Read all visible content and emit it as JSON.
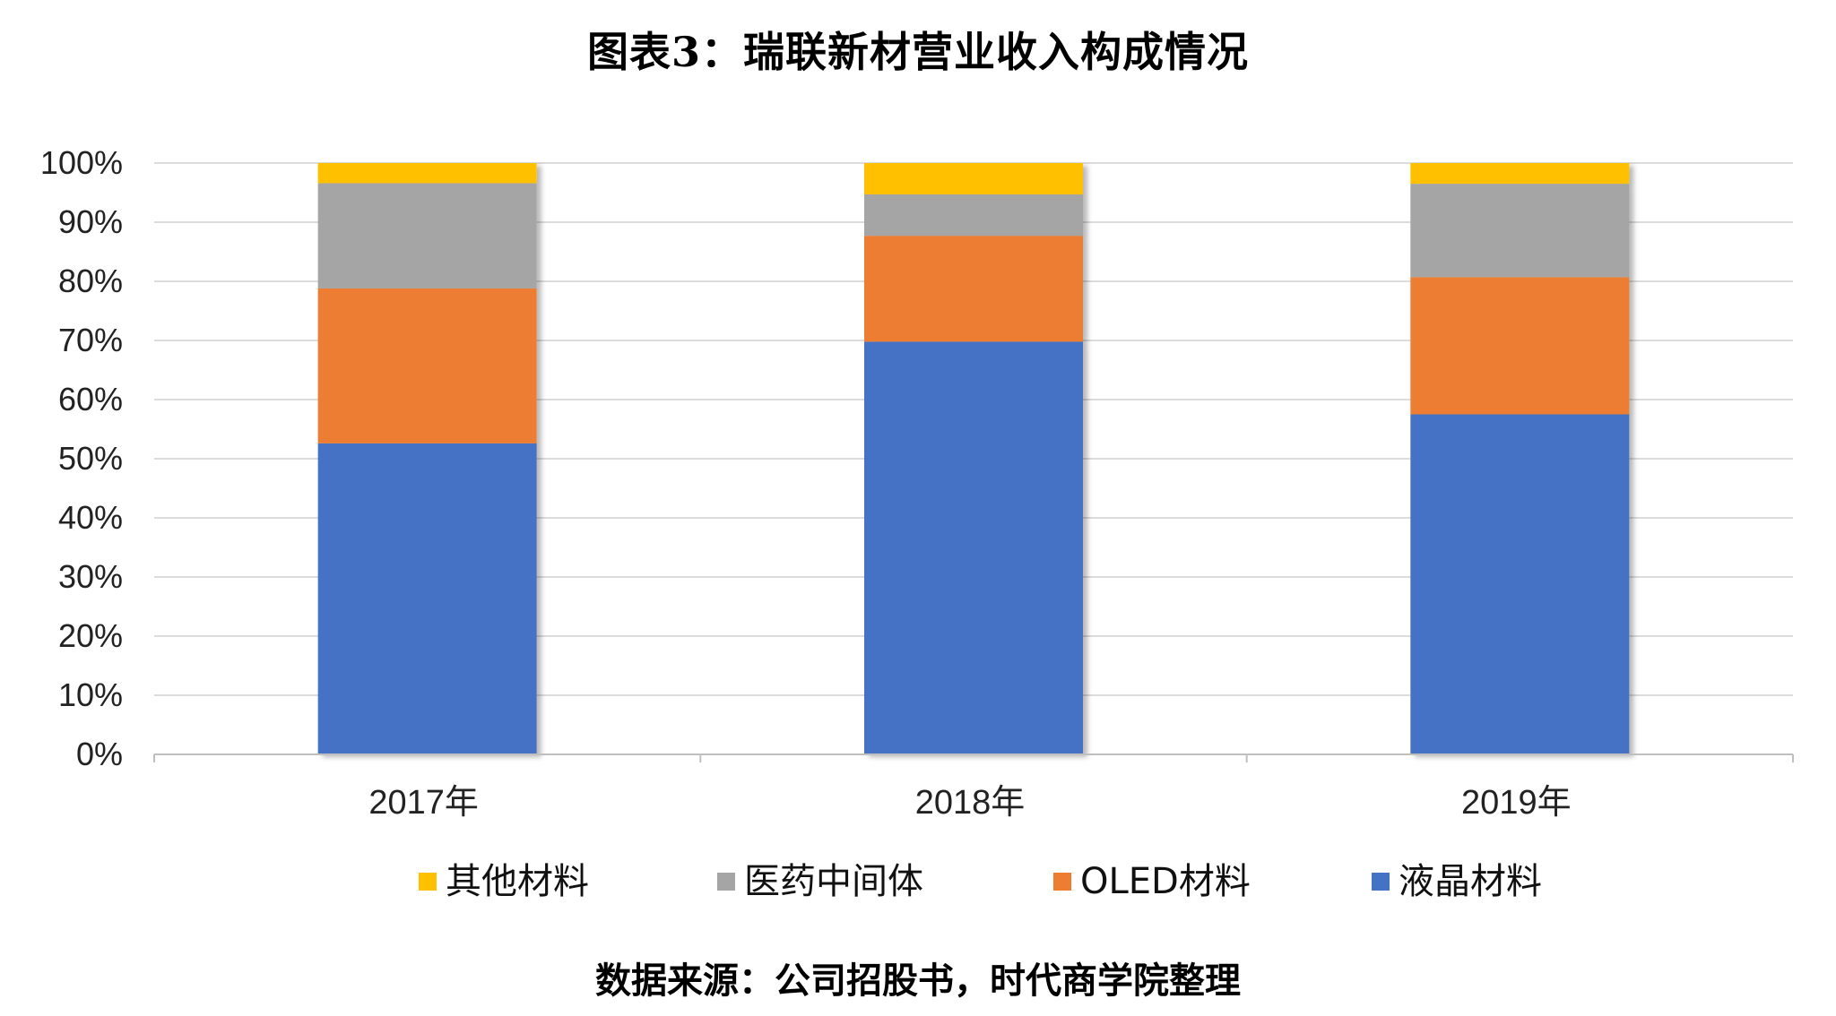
{
  "title": "图表3：瑞联新材营业收入构成情况",
  "source": "数据来源：公司招股书，时代商学院整理",
  "chart_data": {
    "type": "bar",
    "stacked": true,
    "categories": [
      "2017年",
      "2018年",
      "2019年"
    ],
    "series": [
      {
        "name": "液晶材料",
        "color": "#4472C4",
        "values": [
          52.6,
          69.8,
          57.5
        ]
      },
      {
        "name": "OLED材料",
        "color": "#ED7D31",
        "values": [
          26.2,
          17.9,
          23.2
        ]
      },
      {
        "name": "医药中间体",
        "color": "#A5A5A5",
        "values": [
          17.8,
          7.0,
          15.8
        ]
      },
      {
        "name": "其他材料",
        "color": "#FFC000",
        "values": [
          3.4,
          5.3,
          3.5
        ]
      }
    ],
    "legend_order": [
      "其他材料",
      "医药中间体",
      "OLED材料",
      "液晶材料"
    ],
    "yticks": [
      "0%",
      "10%",
      "20%",
      "30%",
      "40%",
      "50%",
      "60%",
      "70%",
      "80%",
      "90%",
      "100%"
    ],
    "ylim": [
      0,
      100
    ],
    "grid": true,
    "legend_position": "bottom"
  }
}
